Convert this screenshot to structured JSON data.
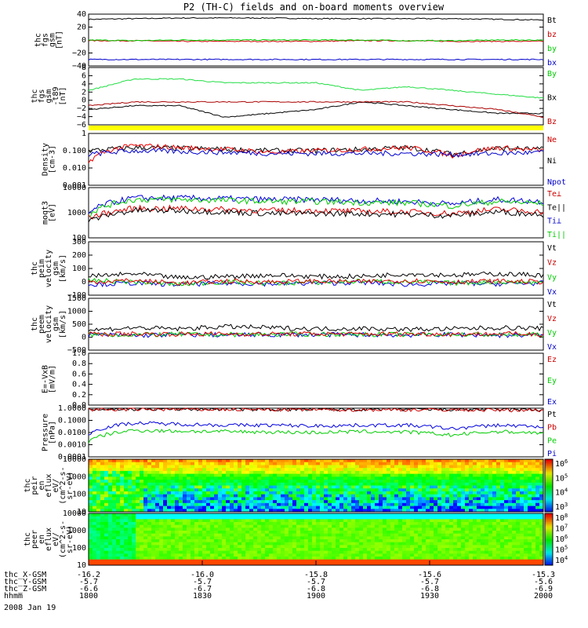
{
  "chart_data": {
    "type": "line",
    "title": "P2 (TH-C) fields and on-board moments overview",
    "date_label": "2008 Jan 19",
    "x_axis": {
      "rows": [
        {
          "label": "thc_X-GSM",
          "values": [
            "-16.2",
            "-16.0",
            "-15.8",
            "-15.6",
            "-15.3"
          ]
        },
        {
          "label": "thc_Y-GSM",
          "values": [
            "-5.7",
            "-5.7",
            "-5.7",
            "-5.7",
            "-5.6"
          ]
        },
        {
          "label": "thc_Z-GSM",
          "values": [
            "-6.6",
            "-6.7",
            "-6.8",
            "-6.8",
            "-6.9"
          ]
        },
        {
          "label": "hhmm",
          "values": [
            "1800",
            "1830",
            "1900",
            "1930",
            "2000"
          ]
        }
      ]
    },
    "panels": [
      {
        "ylabel": [
          "thc",
          "fgs",
          "gsm",
          "[nT]"
        ],
        "ticks": [
          "40",
          "20",
          "0",
          "−20",
          "−40"
        ],
        "ylim": [
          -40,
          40
        ],
        "legend": [
          {
            "name": "Bt",
            "color": "#000000"
          },
          {
            "name": "bz",
            "color": "#cc0000"
          },
          {
            "name": "by",
            "color": "#00cc00"
          },
          {
            "name": "bx",
            "color": "#0000cc"
          }
        ],
        "series": [
          {
            "name": "Bt",
            "color": "#000000",
            "values": [
              32,
              33,
              34,
              34,
              34,
              33,
              33,
              33,
              33,
              32,
              31
            ]
          },
          {
            "name": "bz",
            "color": "#cc0000",
            "values": [
              -1,
              -1,
              -2,
              -2,
              -2,
              -2,
              -1,
              -1,
              -2,
              -2,
              -2
            ]
          },
          {
            "name": "by",
            "color": "#00cc00",
            "values": [
              0,
              -1,
              0,
              0,
              0,
              0,
              0,
              -1,
              -1,
              0,
              0
            ]
          },
          {
            "name": "bx",
            "color": "#0000cc",
            "values": [
              -30,
              -30,
              -30,
              -30,
              -30,
              -30,
              -30,
              -30,
              -30,
              -30,
              -30
            ]
          }
        ]
      },
      {
        "ylabel": [
          "thc",
          "fgs",
          "gsm",
          "-t89",
          "[nT]"
        ],
        "ticks": [
          "8",
          "6",
          "4",
          "2",
          "0",
          "−2",
          "−4",
          "−6"
        ],
        "ylim": [
          -7,
          8
        ],
        "legend": [
          {
            "name": "By",
            "color": "#00cc00"
          },
          {
            "name": "Bx",
            "color": "#000000"
          },
          {
            "name": "Bz",
            "color": "#cc0000"
          }
        ],
        "series": [
          {
            "name": "By",
            "color": "#22dd44",
            "values": [
              2,
              5,
              5,
              4,
              4,
              4,
              2,
              3,
              2,
              1,
              0
            ]
          },
          {
            "name": "Bx",
            "color": "#000000",
            "values": [
              -3,
              -2,
              -2,
              -5,
              -4,
              -3,
              -1,
              -2,
              -3,
              -4,
              -4
            ]
          },
          {
            "name": "Bz",
            "color": "#aa0000",
            "values": [
              -2,
              -1,
              -1,
              -1,
              -1,
              -1,
              -1,
              -1,
              -2,
              -3,
              -5
            ]
          }
        ]
      },
      {
        "band_only": true,
        "band_color": "#ffff00"
      },
      {
        "ylabel": [
          "Density",
          "[cm-3]"
        ],
        "ticks": [
          "1",
          "0.100",
          "0.010",
          "0.001"
        ],
        "ylim": [
          0.001,
          1
        ],
        "log": true,
        "legend": [
          {
            "name": "Ne",
            "color": "#cc0000"
          },
          {
            "name": "Ni",
            "color": "#000000"
          },
          {
            "name": "Npot",
            "color": "#0000cc"
          }
        ],
        "series": [
          {
            "name": "Ni",
            "color": "#000000",
            "values": [
              0.1,
              0.15,
              0.14,
              0.12,
              0.1,
              0.1,
              0.12,
              0.15,
              0.06,
              0.14,
              0.12
            ]
          },
          {
            "name": "Ne",
            "color": "#ee0000",
            "values": [
              0.02,
              0.2,
              0.15,
              0.12,
              0.08,
              0.1,
              0.12,
              0.15,
              0.05,
              0.15,
              0.1
            ]
          },
          {
            "name": "Npot",
            "color": "#0000cc",
            "values": [
              0.06,
              0.1,
              0.09,
              0.08,
              0.07,
              0.07,
              0.07,
              0.07,
              0.06,
              0.07,
              0.08
            ]
          }
        ]
      },
      {
        "ylabel": [
          "moqt3",
          "[eV]"
        ],
        "ticks": [
          "10000",
          "1000",
          "100"
        ],
        "ylim": [
          30,
          10000
        ],
        "log": true,
        "legend": [
          {
            "name": "Te⊥",
            "color": "#cc0000"
          },
          {
            "name": "Te||",
            "color": "#000000"
          },
          {
            "name": "Ti⊥",
            "color": "#0000cc"
          },
          {
            "name": "Ti||",
            "color": "#00cc00"
          }
        ],
        "series": [
          {
            "name": "Ti⊥",
            "color": "#0000dd",
            "values": [
              500,
              3000,
              3000,
              2800,
              2500,
              2500,
              2200,
              2000,
              1500,
              2500,
              2000
            ]
          },
          {
            "name": "Ti||",
            "color": "#00cc00",
            "values": [
              400,
              2500,
              2500,
              2300,
              2000,
              2000,
              1800,
              1700,
              1200,
              2000,
              1600
            ]
          },
          {
            "name": "Te⊥",
            "color": "#dd0000",
            "values": [
              300,
              900,
              900,
              800,
              700,
              700,
              650,
              600,
              500,
              800,
              600
            ]
          },
          {
            "name": "Te||",
            "color": "#000000",
            "values": [
              200,
              700,
              700,
              600,
              500,
              500,
              500,
              450,
              400,
              600,
              450
            ]
          }
        ]
      },
      {
        "ylabel": [
          "thc",
          "peim",
          "velocity",
          "gsm",
          "[km/s]"
        ],
        "ticks": [
          "300",
          "200",
          "100",
          "0",
          "−100"
        ],
        "ylim": [
          -100,
          300
        ],
        "legend": [
          {
            "name": "Vt",
            "color": "#000000"
          },
          {
            "name": "Vz",
            "color": "#cc0000"
          },
          {
            "name": "Vy",
            "color": "#00cc00"
          },
          {
            "name": "Vx",
            "color": "#0000cc"
          }
        ],
        "series": [
          {
            "name": "Vx",
            "color": "#0000dd",
            "values": [
              -20,
              -10,
              -20,
              -10,
              -15,
              -10,
              -5,
              -20,
              -10,
              -15,
              -10
            ]
          },
          {
            "name": "Vy",
            "color": "#00cc00",
            "values": [
              10,
              0,
              -20,
              0,
              -10,
              -5,
              5,
              0,
              -10,
              0,
              -5
            ]
          },
          {
            "name": "Vz",
            "color": "#dd0000",
            "values": [
              0,
              10,
              -10,
              5,
              0,
              5,
              0,
              10,
              0,
              5,
              0
            ]
          },
          {
            "name": "Vt",
            "color": "#000000",
            "values": [
              40,
              60,
              30,
              40,
              50,
              40,
              40,
              60,
              50,
              60,
              50
            ]
          }
        ]
      },
      {
        "ylabel": [
          "thc",
          "peem",
          "velocity",
          "gsm",
          "[km/s]"
        ],
        "ticks": [
          "1500",
          "1000",
          "500",
          "0",
          "−500"
        ],
        "ylim": [
          -700,
          1500
        ],
        "legend": [
          {
            "name": "Vt",
            "color": "#000000"
          },
          {
            "name": "Vz",
            "color": "#cc0000"
          },
          {
            "name": "Vy",
            "color": "#00cc00"
          },
          {
            "name": "Vx",
            "color": "#0000cc"
          }
        ],
        "series": [
          {
            "name": "Vx",
            "color": "#0000dd",
            "values": [
              -50,
              -80,
              -40,
              -60,
              -50,
              -40,
              -50,
              -60,
              -40,
              -70,
              -60
            ]
          },
          {
            "name": "Vy",
            "color": "#00cc00",
            "values": [
              -30,
              -50,
              -30,
              -40,
              -30,
              -20,
              -30,
              -40,
              -30,
              -50,
              -40
            ]
          },
          {
            "name": "Vz",
            "color": "#dd0000",
            "values": [
              -20,
              -10,
              -20,
              -10,
              -20,
              -10,
              -20,
              -10,
              -20,
              -10,
              -20
            ]
          },
          {
            "name": "Vt",
            "color": "#000000",
            "values": [
              150,
              250,
              200,
              300,
              250,
              200,
              220,
              180,
              200,
              250,
              220
            ]
          }
        ]
      },
      {
        "ylabel": [
          "E=-VxB",
          "[mV/m]"
        ],
        "ticks": [
          "1.0",
          "0.8",
          "0.6",
          "0.4",
          "0.2",
          "0.0"
        ],
        "ylim": [
          0,
          1
        ],
        "legend": [
          {
            "name": "Ez",
            "color": "#cc0000"
          },
          {
            "name": "Ey",
            "color": "#00cc00"
          },
          {
            "name": "Ex",
            "color": "#0000cc"
          }
        ],
        "series": []
      },
      {
        "ylabel": [
          "Pressure",
          "[nPa]"
        ],
        "ticks": [
          "1.0000",
          "0.1000",
          "0.0100",
          "0.0010",
          "0.0001"
        ],
        "ylim": [
          0.0001,
          1
        ],
        "log": true,
        "legend": [
          {
            "name": "Pt",
            "color": "#000000"
          },
          {
            "name": "Pb",
            "color": "#cc0000"
          },
          {
            "name": "Pe",
            "color": "#00cc00"
          },
          {
            "name": "Pi",
            "color": "#0000cc"
          }
        ],
        "series": [
          {
            "name": "Pt",
            "color": "#000000",
            "values": [
              0.8,
              0.85,
              0.85,
              0.85,
              0.8,
              0.8,
              0.8,
              0.8,
              0.8,
              0.8,
              0.75
            ]
          },
          {
            "name": "Pb",
            "color": "#cc0000",
            "values": [
              0.75,
              0.8,
              0.8,
              0.8,
              0.75,
              0.75,
              0.75,
              0.75,
              0.75,
              0.7,
              0.7
            ]
          },
          {
            "name": "Pi",
            "color": "#0000dd",
            "values": [
              0.006,
              0.06,
              0.05,
              0.04,
              0.04,
              0.035,
              0.04,
              0.04,
              0.02,
              0.04,
              0.03
            ]
          },
          {
            "name": "Pe",
            "color": "#00cc00",
            "values": [
              0.0015,
              0.015,
              0.013,
              0.012,
              0.011,
              0.01,
              0.012,
              0.011,
              0.006,
              0.012,
              0.009
            ]
          }
        ]
      },
      {
        "type": "heatmap",
        "ylabel": [
          "thc",
          "peir",
          "en",
          "eflux",
          "eV/",
          "(cm^2-s-",
          "sr-eV)"
        ],
        "ticks": [
          "10000",
          "1000",
          "100",
          "10"
        ],
        "colorbar": [
          "10^6",
          "10^5",
          "10^4",
          "10^3"
        ]
      },
      {
        "type": "heatmap",
        "ylabel": [
          "thc",
          "peer",
          "en",
          "eflux",
          "eV/",
          "(cm^2-s-",
          "sr-eV)"
        ],
        "ticks": [
          "10000",
          "1000",
          "100",
          "10"
        ],
        "colorbar": [
          "10^8",
          "10^7",
          "10^6",
          "10^5",
          "10^4"
        ]
      }
    ]
  }
}
